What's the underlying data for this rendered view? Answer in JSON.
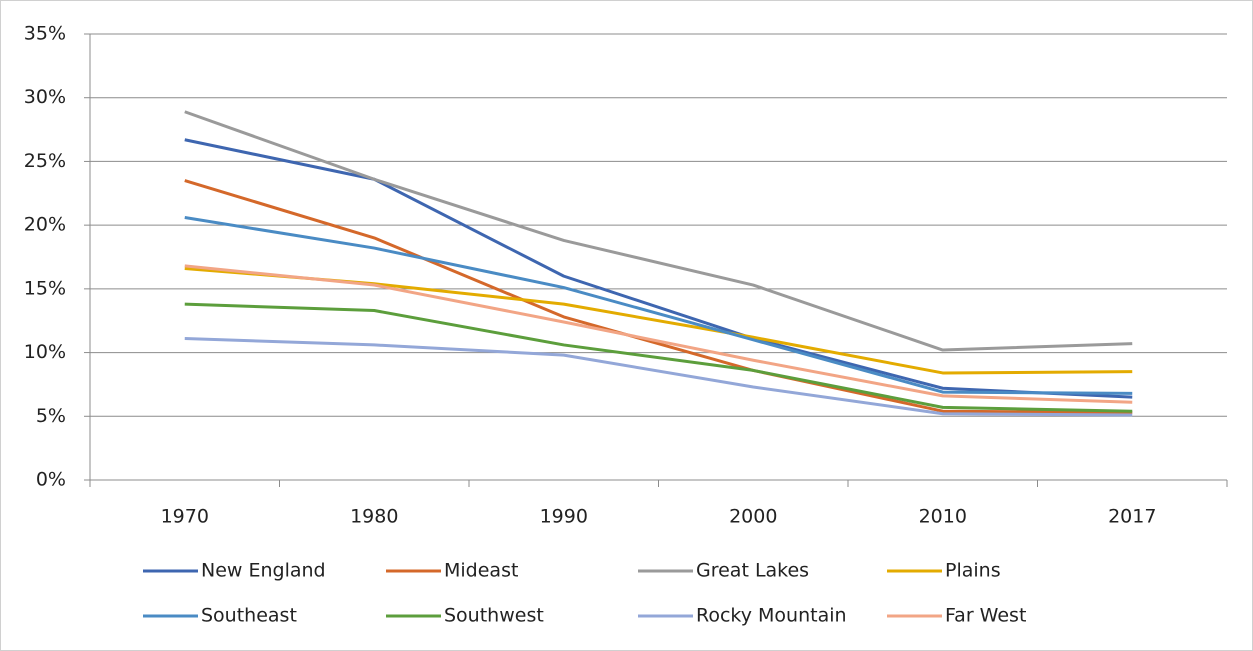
{
  "chart_data": {
    "type": "line",
    "categories": [
      "1970",
      "1980",
      "1990",
      "2000",
      "2010",
      "2017"
    ],
    "series": [
      {
        "name": "New England",
        "color": "#3e66b0",
        "values": [
          26.7,
          23.6,
          16.0,
          11.1,
          7.2,
          6.5
        ]
      },
      {
        "name": "Mideast",
        "color": "#d4682a",
        "values": [
          23.5,
          19.0,
          12.8,
          8.6,
          5.4,
          5.3
        ]
      },
      {
        "name": "Great Lakes",
        "color": "#9a9a9a",
        "values": [
          28.9,
          23.6,
          18.8,
          15.3,
          10.2,
          10.7
        ]
      },
      {
        "name": "Plains",
        "color": "#e3ab00",
        "values": [
          16.6,
          15.4,
          13.8,
          11.2,
          8.4,
          8.5
        ]
      },
      {
        "name": "Southeast",
        "color": "#4a8bc4",
        "values": [
          20.6,
          18.2,
          15.1,
          11.0,
          6.9,
          6.8
        ]
      },
      {
        "name": "Southwest",
        "color": "#5c9e3c",
        "values": [
          13.8,
          13.3,
          10.6,
          8.6,
          5.7,
          5.4
        ]
      },
      {
        "name": "Rocky Mountain",
        "color": "#93a7d8",
        "values": [
          11.1,
          10.6,
          9.8,
          7.3,
          5.2,
          5.1
        ]
      },
      {
        "name": "Far West",
        "color": "#f2a585",
        "values": [
          16.8,
          15.3,
          12.4,
          9.4,
          6.6,
          6.1
        ]
      }
    ],
    "ylim": [
      0,
      35
    ],
    "yticks": [
      {
        "value": 0,
        "label": "0%"
      },
      {
        "value": 5,
        "label": "5%"
      },
      {
        "value": 10,
        "label": "10%"
      },
      {
        "value": 15,
        "label": "15%"
      },
      {
        "value": 20,
        "label": "20%"
      },
      {
        "value": 25,
        "label": "25%"
      },
      {
        "value": 30,
        "label": "30%"
      },
      {
        "value": 35,
        "label": "35%"
      }
    ],
    "grid": true
  }
}
